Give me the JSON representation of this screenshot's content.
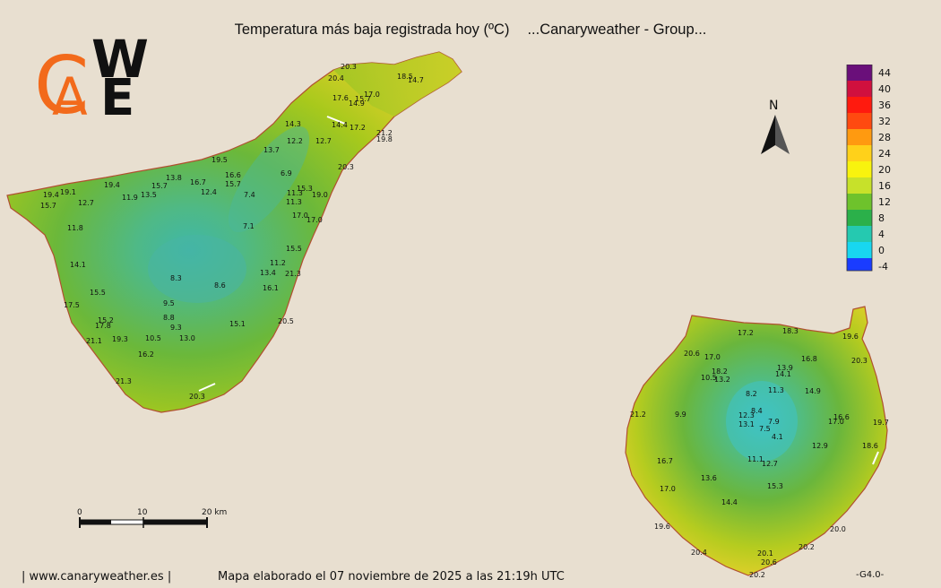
{
  "header": {
    "title": "Temperatura más baja registrada hoy (ºC)",
    "group": "...Canaryweather - Group..."
  },
  "logo": {
    "text": "CAWE"
  },
  "legend": {
    "labels": [
      "44",
      "40",
      "36",
      "32",
      "28",
      "24",
      "20",
      "16",
      "12",
      "8",
      "4",
      "0",
      "-4"
    ]
  },
  "north": {
    "label": "N"
  },
  "scale_bar": {
    "ticks": [
      "0",
      "10",
      "20 km"
    ]
  },
  "footer": {
    "website": "| www.canaryweather.es |",
    "caption": "Mapa elaborado el 07 noviembre de 2025 a las 21:19h UTC",
    "version": "-G4.0-"
  },
  "tenerife_readings": [
    "20.3",
    "20.4",
    "18.5",
    "14.7",
    "17.6",
    "15.7",
    "17.0",
    "14.9",
    "14.3",
    "14.4",
    "17.2",
    "21.2",
    "19.8",
    "12.2",
    "12.7",
    "20.3",
    "19.5",
    "13.7",
    "6.9",
    "16.6",
    "15.7",
    "16.7",
    "13.8",
    "15.7",
    "19.4",
    "19.4",
    "19.1",
    "15.7",
    "12.7",
    "11.9",
    "13.5",
    "12.4",
    "7.4",
    "11.3",
    "15.3",
    "19.0",
    "11.3",
    "17.0",
    "17.0",
    "11.8",
    "7.1",
    "15.5",
    "14.1",
    "11.2",
    "21.3",
    "13.4",
    "8.3",
    "8.6",
    "16.1",
    "15.5",
    "17.5",
    "9.5",
    "8.8",
    "15.2",
    "17.8",
    "9.3",
    "20.5",
    "15.1",
    "21.1",
    "19.3",
    "10.5",
    "13.0",
    "16.2",
    "21.3",
    "20.3"
  ],
  "grancanaria_readings": [
    "17.2",
    "18.3",
    "19.6",
    "20.6",
    "17.0",
    "16.8",
    "20.3",
    "18.2",
    "10.5",
    "13.2",
    "13.9",
    "14.1",
    "8.2",
    "11.3",
    "14.9",
    "21.2",
    "9.9",
    "12.3",
    "8.4",
    "13.1",
    "7.9",
    "7.5",
    "16.6",
    "17.0",
    "19.7",
    "4.1",
    "12.9",
    "18.6",
    "16.7",
    "11.1",
    "12.7",
    "13.6",
    "17.0",
    "15.3",
    "14.4",
    "19.6",
    "20.0",
    "20.4",
    "20.2",
    "20.1",
    "20.6",
    "20.2"
  ]
}
